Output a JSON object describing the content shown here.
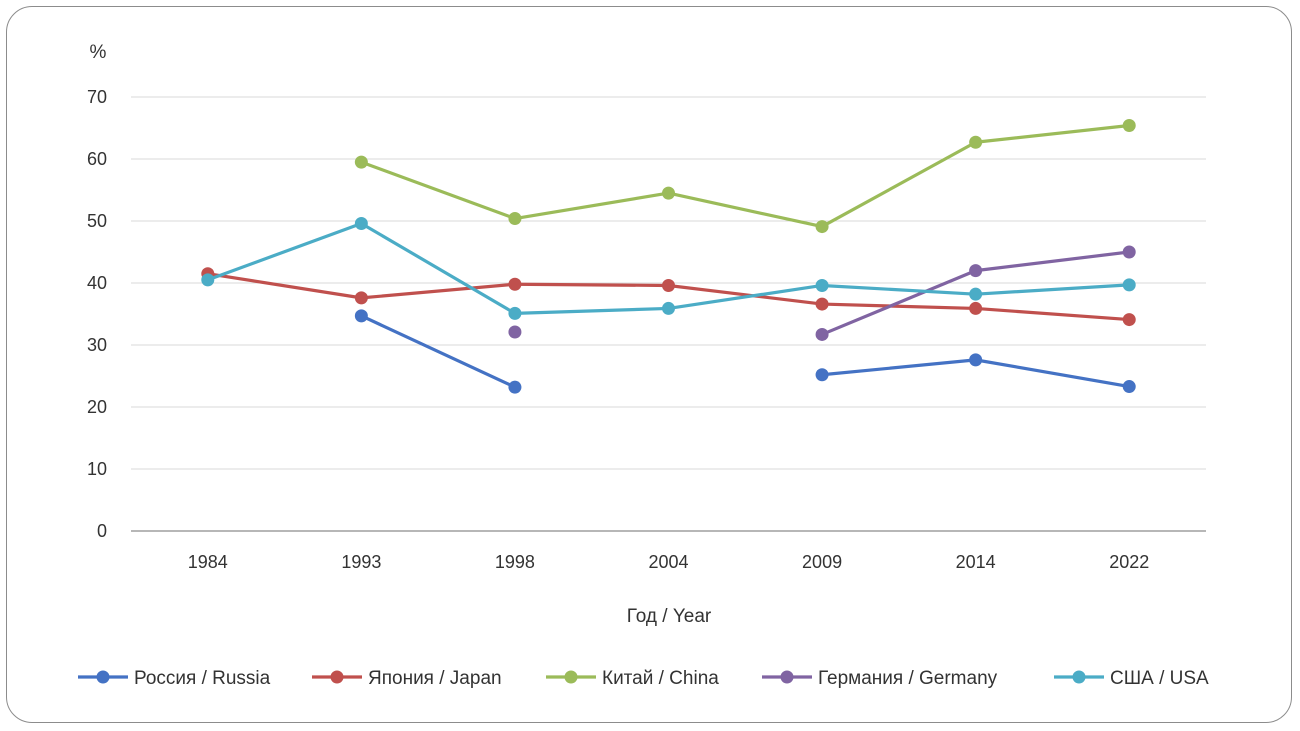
{
  "chart_data": {
    "type": "line",
    "title": "",
    "xlabel": "Год / Year",
    "ylabel": "%",
    "categories": [
      "1984",
      "1993",
      "1998",
      "2004",
      "2009",
      "2014",
      "2022"
    ],
    "ylim": [
      0,
      70
    ],
    "yticks": [
      0,
      10,
      20,
      30,
      40,
      50,
      60,
      70
    ],
    "grid": true,
    "legend_position": "bottom",
    "series": [
      {
        "name": "Россия / Russia",
        "color": "#4472C4",
        "values": [
          null,
          34.7,
          23.2,
          null,
          25.2,
          27.6,
          23.3
        ]
      },
      {
        "name": "Япония / Japan",
        "color": "#C0504D",
        "values": [
          41.5,
          37.6,
          39.8,
          39.6,
          36.6,
          35.9,
          34.1
        ]
      },
      {
        "name": "Китай / China",
        "color": "#9BBB59",
        "values": [
          null,
          59.5,
          50.4,
          54.5,
          49.1,
          62.7,
          65.4
        ]
      },
      {
        "name": "Германия / Germany",
        "color": "#8064A2",
        "values": [
          null,
          null,
          32.1,
          null,
          31.7,
          42.0,
          45.0
        ]
      },
      {
        "name": "США / USA",
        "color": "#4BACC6",
        "values": [
          40.5,
          49.6,
          35.1,
          35.9,
          39.6,
          38.2,
          39.7
        ]
      }
    ]
  }
}
